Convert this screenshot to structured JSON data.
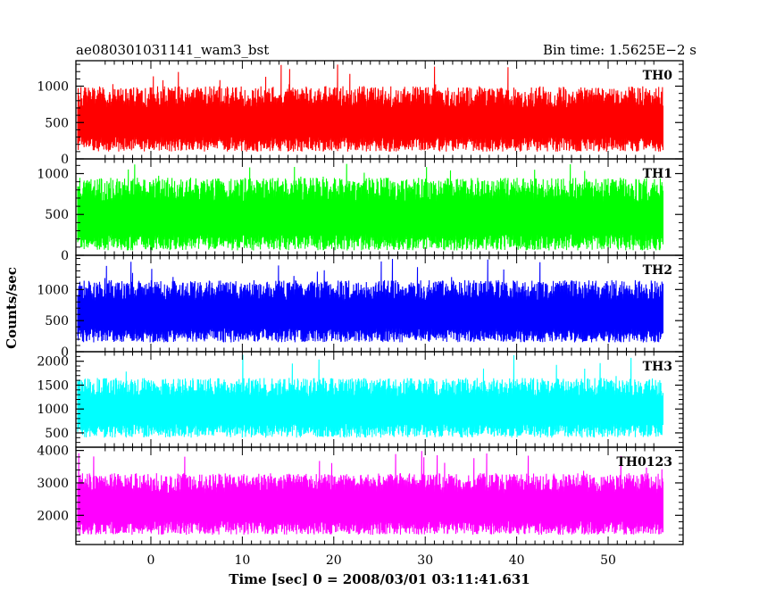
{
  "chart_data": {
    "type": "line",
    "title_left": "ae080301031141_wam3_bst",
    "title_right": "Bin time: 1.5625E−2 s",
    "xlabel": "Time [sec] 0 = 2008/03/01 03:11:41.631",
    "ylabel": "Counts/sec",
    "xlim": [
      -8.2,
      58.2
    ],
    "x_data_range": [
      -8.0,
      56.0
    ],
    "xticks": [
      0,
      10,
      20,
      30,
      40,
      50
    ],
    "grid": false,
    "panels": [
      {
        "name": "TH0",
        "color": "#ff0000",
        "ylim": [
          0,
          1350
        ],
        "yticks": [
          0,
          500,
          1000
        ],
        "baseline": 100,
        "mean": 550,
        "typical_max": 1000,
        "peak_max": 1300
      },
      {
        "name": "TH1",
        "color": "#00ff00",
        "ylim": [
          0,
          1180
        ],
        "yticks": [
          0,
          500,
          1000
        ],
        "baseline": 60,
        "mean": 500,
        "typical_max": 950,
        "peak_max": 1150
      },
      {
        "name": "TH2",
        "color": "#0000ff",
        "ylim": [
          0,
          1550
        ],
        "yticks": [
          0,
          500,
          1000
        ],
        "baseline": 150,
        "mean": 650,
        "typical_max": 1150,
        "peak_max": 1500
      },
      {
        "name": "TH3",
        "color": "#00ffff",
        "ylim": [
          200,
          2200
        ],
        "yticks": [
          500,
          1000,
          1500,
          2000
        ],
        "baseline": 400,
        "mean": 1050,
        "typical_max": 1650,
        "peak_max": 2150
      },
      {
        "name": "TH0123",
        "color": "#ff00ff",
        "ylim": [
          1100,
          4100
        ],
        "yticks": [
          2000,
          3000,
          4000
        ],
        "baseline": 1400,
        "mean": 2350,
        "typical_max": 3300,
        "peak_max": 4000
      }
    ]
  }
}
